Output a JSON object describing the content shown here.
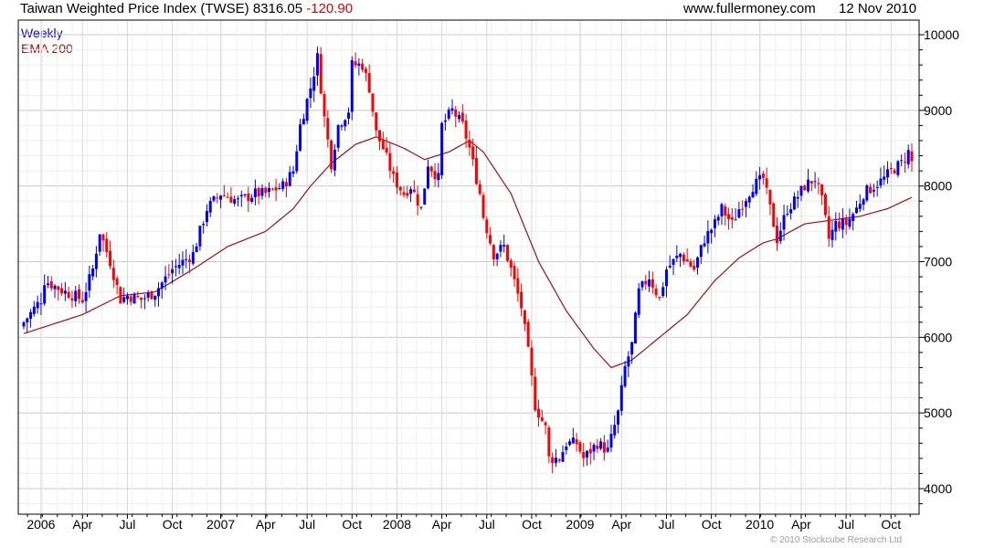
{
  "header": {
    "title": "Taiwan Weighted Price Index (TWSE)",
    "last": "8316.05",
    "change": "-120.90",
    "site": "www.fullermoney.com",
    "date": "12 Nov 2010"
  },
  "legend": {
    "weekly": "Weekly",
    "ema": "EMA 200"
  },
  "copyright": "© 2010 Stockcube Research Ltd",
  "colors": {
    "up": "#0000ff",
    "down": "#ff0000",
    "ema": "#a01010",
    "grid": "#d8d8d8"
  },
  "chart_data": {
    "type": "candlestick",
    "title": "Taiwan Weighted Price Index (TWSE)",
    "ylim": [
      3700,
      10200
    ],
    "yticks": [
      4000,
      5000,
      6000,
      7000,
      8000,
      9000,
      10000
    ],
    "xlim_weeks": [
      -1,
      259
    ],
    "xticks": [
      {
        "week": 5,
        "label": "2006"
      },
      {
        "week": 17,
        "label": "Apr"
      },
      {
        "week": 30,
        "label": "Jul"
      },
      {
        "week": 43,
        "label": "Oct"
      },
      {
        "week": 57,
        "label": "2007"
      },
      {
        "week": 70,
        "label": "Apr"
      },
      {
        "week": 82,
        "label": "Jul"
      },
      {
        "week": 95,
        "label": "Oct"
      },
      {
        "week": 108,
        "label": "2008"
      },
      {
        "week": 121,
        "label": "Apr"
      },
      {
        "week": 134,
        "label": "Jul"
      },
      {
        "week": 147,
        "label": "Oct"
      },
      {
        "week": 161,
        "label": "2009"
      },
      {
        "week": 173,
        "label": "Apr"
      },
      {
        "week": 186,
        "label": "Jul"
      },
      {
        "week": 199,
        "label": "Oct"
      },
      {
        "week": 213,
        "label": "2010"
      },
      {
        "week": 225,
        "label": "Apr"
      },
      {
        "week": 238,
        "label": "Jul"
      },
      {
        "week": 251,
        "label": "Oct"
      }
    ],
    "close_points": [
      [
        0,
        6200
      ],
      [
        5,
        6500
      ],
      [
        6,
        6750
      ],
      [
        12,
        6600
      ],
      [
        17,
        6500
      ],
      [
        20,
        6900
      ],
      [
        22,
        7400
      ],
      [
        25,
        7000
      ],
      [
        28,
        6500
      ],
      [
        30,
        6550
      ],
      [
        34,
        6500
      ],
      [
        38,
        6600
      ],
      [
        43,
        6900
      ],
      [
        49,
        7100
      ],
      [
        53,
        7700
      ],
      [
        57,
        7900
      ],
      [
        62,
        7800
      ],
      [
        67,
        7900
      ],
      [
        70,
        7900
      ],
      [
        75,
        8000
      ],
      [
        78,
        8200
      ],
      [
        80,
        8800
      ],
      [
        83,
        9300
      ],
      [
        85,
        9700
      ],
      [
        87,
        8900
      ],
      [
        89,
        8300
      ],
      [
        91,
        8800
      ],
      [
        94,
        9000
      ],
      [
        95,
        9600
      ],
      [
        98,
        9600
      ],
      [
        100,
        9300
      ],
      [
        102,
        8700
      ],
      [
        104,
        8500
      ],
      [
        107,
        8100
      ],
      [
        110,
        7900
      ],
      [
        112,
        8000
      ],
      [
        114,
        7800
      ],
      [
        115,
        7700
      ],
      [
        117,
        8300
      ],
      [
        120,
        8100
      ],
      [
        121,
        8800
      ],
      [
        124,
        9000
      ],
      [
        127,
        8800
      ],
      [
        129,
        8500
      ],
      [
        132,
        7900
      ],
      [
        133,
        7600
      ],
      [
        136,
        7100
      ],
      [
        139,
        7200
      ],
      [
        141,
        6900
      ],
      [
        144,
        6400
      ],
      [
        146,
        5800
      ],
      [
        148,
        5100
      ],
      [
        151,
        4800
      ],
      [
        152,
        4400
      ],
      [
        155,
        4400
      ],
      [
        157,
        4600
      ],
      [
        160,
        4600
      ],
      [
        162,
        4400
      ],
      [
        166,
        4600
      ],
      [
        169,
        4500
      ],
      [
        172,
        5000
      ],
      [
        174,
        5600
      ],
      [
        176,
        5900
      ],
      [
        178,
        6600
      ],
      [
        181,
        6800
      ],
      [
        184,
        6500
      ],
      [
        186,
        6900
      ],
      [
        190,
        7100
      ],
      [
        194,
        6900
      ],
      [
        197,
        7300
      ],
      [
        200,
        7500
      ],
      [
        202,
        7700
      ],
      [
        205,
        7500
      ],
      [
        207,
        7700
      ],
      [
        211,
        8000
      ],
      [
        214,
        8100
      ],
      [
        217,
        7500
      ],
      [
        218,
        7300
      ],
      [
        221,
        7700
      ],
      [
        223,
        7800
      ],
      [
        226,
        8000
      ],
      [
        229,
        8100
      ],
      [
        231,
        7800
      ],
      [
        233,
        7300
      ],
      [
        235,
        7500
      ],
      [
        238,
        7500
      ],
      [
        241,
        7700
      ],
      [
        243,
        7900
      ],
      [
        246,
        8000
      ],
      [
        249,
        8100
      ],
      [
        251,
        8200
      ],
      [
        254,
        8300
      ],
      [
        256,
        8450
      ],
      [
        257,
        8316
      ]
    ],
    "ema_points": [
      [
        0,
        6050
      ],
      [
        17,
        6300
      ],
      [
        28,
        6550
      ],
      [
        38,
        6600
      ],
      [
        49,
        6900
      ],
      [
        59,
        7200
      ],
      [
        70,
        7400
      ],
      [
        78,
        7700
      ],
      [
        83,
        8000
      ],
      [
        89,
        8300
      ],
      [
        96,
        8550
      ],
      [
        102,
        8650
      ],
      [
        110,
        8500
      ],
      [
        116,
        8350
      ],
      [
        123,
        8450
      ],
      [
        129,
        8600
      ],
      [
        133,
        8450
      ],
      [
        141,
        7900
      ],
      [
        149,
        7000
      ],
      [
        157,
        6350
      ],
      [
        165,
        5850
      ],
      [
        170,
        5600
      ],
      [
        176,
        5700
      ],
      [
        184,
        6000
      ],
      [
        192,
        6300
      ],
      [
        200,
        6750
      ],
      [
        207,
        7050
      ],
      [
        214,
        7250
      ],
      [
        218,
        7300
      ],
      [
        226,
        7500
      ],
      [
        234,
        7550
      ],
      [
        242,
        7600
      ],
      [
        250,
        7700
      ],
      [
        257,
        7850
      ]
    ]
  }
}
